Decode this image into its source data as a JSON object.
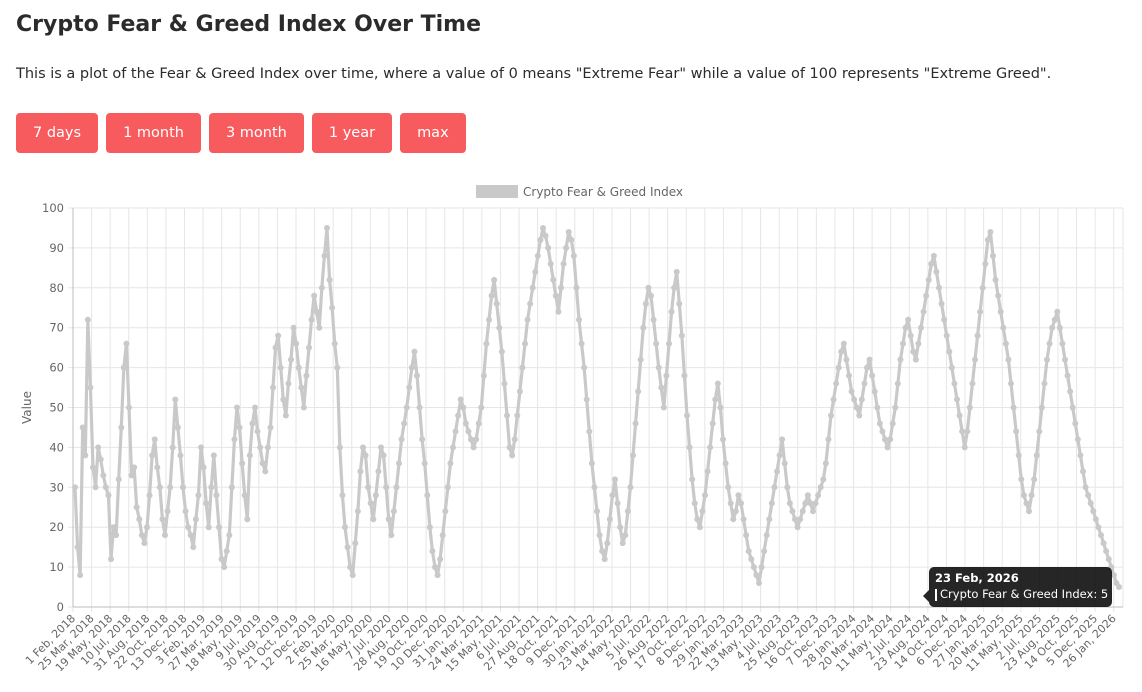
{
  "page": {
    "title": "Crypto Fear & Greed Index Over Time",
    "description": "This is a plot of the Fear & Greed Index over time, where a value of 0 means \"Extreme Fear\" while a value of 100 represents \"Extreme Greed\"."
  },
  "range_buttons": [
    {
      "label": "7 days"
    },
    {
      "label": "1 month"
    },
    {
      "label": "3 month"
    },
    {
      "label": "1 year"
    },
    {
      "label": "max"
    }
  ],
  "tooltip": {
    "date": "23 Feb, 2026",
    "line": "Crypto Fear & Greed Index: 5"
  },
  "colors": {
    "button_bg": "#f75b5e",
    "series": "#c9c9c9",
    "grid": "#e6e6e6"
  },
  "chart_data": {
    "type": "line",
    "title": "",
    "ylabel": "Value",
    "ylim": [
      0,
      100
    ],
    "yticks": [
      0,
      10,
      20,
      30,
      40,
      50,
      60,
      70,
      80,
      90,
      100
    ],
    "grid": true,
    "legend_position": "top",
    "series": [
      {
        "name": "Crypto Fear & Greed Index",
        "date_range": [
          "1 Feb, 2018",
          "23 Feb, 2026"
        ],
        "values": [
          30,
          15,
          8,
          45,
          38,
          72,
          55,
          35,
          30,
          40,
          37,
          33,
          30,
          28,
          12,
          20,
          18,
          32,
          45,
          60,
          66,
          50,
          33,
          35,
          25,
          22,
          18,
          16,
          20,
          28,
          38,
          42,
          35,
          30,
          22,
          18,
          24,
          30,
          40,
          52,
          45,
          38,
          30,
          24,
          20,
          18,
          15,
          22,
          28,
          40,
          35,
          26,
          20,
          30,
          38,
          28,
          20,
          12,
          10,
          14,
          18,
          30,
          42,
          50,
          45,
          36,
          28,
          22,
          38,
          46,
          50,
          44,
          40,
          36,
          34,
          40,
          45,
          55,
          65,
          68,
          60,
          52,
          48,
          56,
          62,
          70,
          66,
          60,
          55,
          50,
          58,
          65,
          72,
          78,
          74,
          70,
          80,
          88,
          95,
          82,
          75,
          66,
          60,
          40,
          28,
          20,
          15,
          10,
          8,
          16,
          24,
          34,
          40,
          38,
          30,
          26,
          22,
          28,
          34,
          40,
          38,
          30,
          22,
          18,
          24,
          30,
          36,
          42,
          46,
          50,
          55,
          60,
          64,
          58,
          50,
          42,
          36,
          28,
          20,
          14,
          10,
          8,
          12,
          18,
          24,
          30,
          36,
          40,
          44,
          48,
          52,
          50,
          46,
          44,
          42,
          40,
          42,
          46,
          50,
          58,
          66,
          72,
          78,
          82,
          76,
          70,
          64,
          56,
          48,
          40,
          38,
          42,
          48,
          54,
          60,
          66,
          72,
          76,
          80,
          84,
          88,
          92,
          95,
          93,
          90,
          86,
          82,
          78,
          74,
          80,
          86,
          90,
          94,
          92,
          88,
          80,
          72,
          66,
          60,
          52,
          44,
          36,
          30,
          24,
          18,
          14,
          12,
          16,
          22,
          28,
          32,
          26,
          20,
          16,
          18,
          24,
          30,
          38,
          46,
          54,
          62,
          70,
          76,
          80,
          78,
          72,
          66,
          60,
          55,
          50,
          58,
          66,
          74,
          80,
          84,
          76,
          68,
          58,
          48,
          40,
          32,
          26,
          22,
          20,
          24,
          28,
          34,
          40,
          46,
          52,
          56,
          50,
          42,
          36,
          30,
          26,
          22,
          24,
          28,
          26,
          22,
          18,
          14,
          12,
          10,
          8,
          6,
          10,
          14,
          18,
          22,
          26,
          30,
          34,
          38,
          42,
          36,
          30,
          26,
          24,
          22,
          20,
          22,
          24,
          26,
          28,
          26,
          24,
          26,
          28,
          30,
          32,
          36,
          42,
          48,
          52,
          56,
          60,
          64,
          66,
          62,
          58,
          54,
          52,
          50,
          48,
          52,
          56,
          60,
          62,
          58,
          54,
          50,
          46,
          44,
          42,
          40,
          42,
          46,
          50,
          56,
          62,
          66,
          70,
          72,
          68,
          64,
          62,
          66,
          70,
          74,
          78,
          82,
          86,
          88,
          84,
          80,
          76,
          72,
          68,
          64,
          60,
          56,
          52,
          48,
          44,
          40,
          44,
          50,
          56,
          62,
          68,
          74,
          80,
          86,
          92,
          94,
          88,
          82,
          78,
          74,
          70,
          66,
          62,
          56,
          50,
          44,
          38,
          32,
          28,
          26,
          24,
          28,
          32,
          38,
          44,
          50,
          56,
          62,
          66,
          70,
          72,
          74,
          70,
          66,
          62,
          58,
          54,
          50,
          46,
          42,
          38,
          34,
          30,
          28,
          26,
          24,
          22,
          20,
          18,
          16,
          14,
          12,
          10,
          8,
          6,
          5
        ]
      }
    ],
    "x_tick_labels": [
      "1 Feb, 2018",
      "25 Mar, 2018",
      "19 May, 2018",
      "10 Jul, 2018",
      "31 Aug, 2018",
      "22 Oct, 2018",
      "13 Dec, 2018",
      "3 Feb, 2019",
      "27 Mar, 2019",
      "18 May, 2019",
      "9 Jul, 2019",
      "30 Aug, 2019",
      "21 Oct, 2019",
      "12 Dec, 2019",
      "2 Feb, 2020",
      "25 Mar, 2020",
      "16 May, 2020",
      "7 Jul, 2020",
      "28 Aug, 2020",
      "19 Oct, 2020",
      "10 Dec, 2020",
      "31 Jan, 2021",
      "24 Mar, 2021",
      "15 May, 2021",
      "6 Jul, 2021",
      "27 Aug, 2021",
      "18 Oct, 2021",
      "9 Dec, 2021",
      "30 Jan, 2022",
      "23 Mar, 2022",
      "14 May, 2022",
      "5 Jul, 2022",
      "26 Aug, 2022",
      "17 Oct, 2022",
      "8 Dec, 2022",
      "29 Jan, 2023",
      "22 Mar, 2023",
      "13 May, 2023",
      "4 Jul, 2023",
      "25 Aug, 2023",
      "16 Oct, 2023",
      "7 Dec, 2023",
      "28 Jan, 2024",
      "20 Mar, 2024",
      "11 May, 2024",
      "2 Jul, 2024",
      "23 Aug, 2024",
      "14 Oct, 2024",
      "6 Dec, 2024",
      "27 Jan, 2025",
      "20 Mar, 2025",
      "11 May, 2025",
      "2 Jul, 2025",
      "23 Aug, 2025",
      "14 Oct, 2025",
      "5 Dec, 2025",
      "26 Jan, 2026"
    ]
  }
}
